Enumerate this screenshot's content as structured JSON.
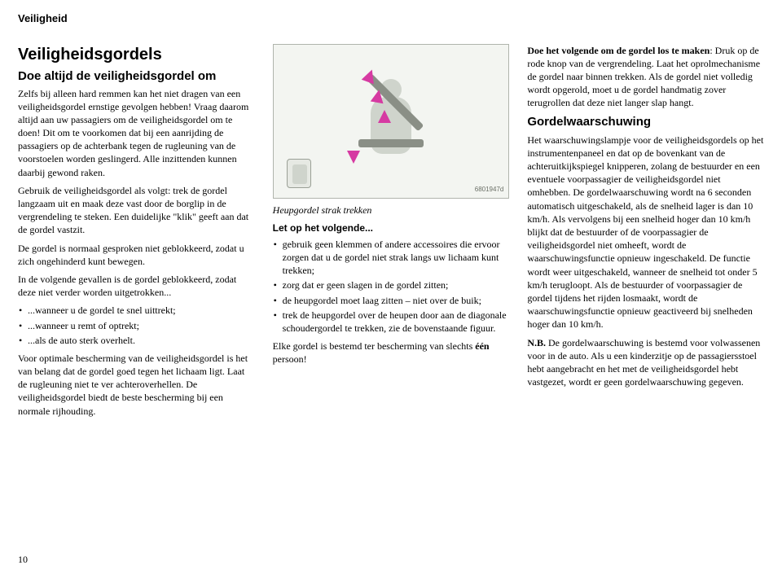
{
  "header": "Veiligheid",
  "page_number": "10",
  "col1": {
    "h1": "Veiligheidsgordels",
    "h2": "Doe altijd de veiligheidsgordel om",
    "p1": "Zelfs bij alleen hard remmen kan het niet dragen van een veiligheidsgordel ernstige gevolgen hebben! Vraag daarom altijd aan uw passagiers om de veiligheidsgordel om te doen! Dit om te voorkomen dat bij een aanrijding de passagiers op de achterbank tegen de rugleuning van de voorstoelen worden geslingerd. Alle inzittenden kunnen daarbij gewond raken.",
    "p2": "Gebruik de veiligheidsgordel als volgt: trek de gordel langzaam uit en maak deze vast door de borglip in de vergrendeling te steken. Een duidelijke \"klik\" geeft aan dat de gordel vastzit.",
    "p3": "De gordel is normaal gesproken niet geblokkeerd, zodat u zich ongehinderd kunt bewegen.",
    "p4": "In de volgende gevallen is de gordel geblokkeerd, zodat deze niet verder worden uitgetrokken...",
    "li1": "...wanneer u de gordel te snel uittrekt;",
    "li2": "...wanneer u remt of optrekt;",
    "li3": "...als de auto sterk overhelt.",
    "p5": "Voor optimale bescherming van de veiligheidsgordel is het van belang dat de gordel goed tegen het lichaam ligt. Laat de rugleuning niet te ver achteroverhellen. De veiligheidsgordel biedt de beste bescherming bij een normale rijhouding."
  },
  "col2": {
    "fig_label": "6801947d",
    "caption": "Heupgordel strak trekken",
    "lead": "Let op het volgende...",
    "li1": "gebruik geen klemmen of andere accessoires die ervoor zorgen dat u de gordel niet strak langs uw lichaam kunt trekken;",
    "li2": "zorg dat er geen slagen in de gordel zitten;",
    "li3": "de heupgordel moet laag zitten – niet over de buik;",
    "li4": "trek de heupgordel over de heupen door aan de diagonale schoudergordel te trekken, zie de bovenstaande figuur.",
    "p_end_a": "Elke gordel is bestemd ter bescherming van slechts ",
    "p_end_b": "één",
    "p_end_c": " persoon!"
  },
  "col3": {
    "p1_a": "Doe het volgende om de gordel los te maken",
    "p1_b": ": Druk op de rode knop van de vergrendeling. Laat het oprolmechanisme de gordel naar binnen trekken. Als de gordel niet volledig wordt opgerold, moet u de gordel handmatig zover terugrollen dat deze niet langer slap hangt.",
    "h3": "Gordelwaarschuwing",
    "p2": "Het waarschuwingslampje voor de veiligheidsgordels op het instrumentenpaneel en dat op de bovenkant van de achteruitkijkspiegel knipperen, zolang de bestuurder en een eventuele voorpassagier de veiligheidsgordel niet omhebben. De gordelwaarschuwing wordt na 6 seconden automatisch uitgeschakeld, als de snelheid lager is dan 10 km/h. Als vervolgens bij een snelheid hoger dan 10 km/h blijkt dat de bestuurder of de voorpassagier de veiligheidsgordel niet omheeft, wordt de waarschuwingsfunctie opnieuw ingeschakeld. De functie wordt weer uitgeschakeld, wanneer de snelheid tot onder 5 km/h terugloopt. Als de bestuurder of voorpassagier de gordel tijdens het rijden losmaakt, wordt de waarschuwingsfunctie opnieuw geactiveerd bij snelheden hoger dan 10 km/h.",
    "p3_a": "N.B.",
    "p3_b": " De gordelwaarschuwing is bestemd voor volwassenen voor in de auto. Als u een kinderzitje op de passagiersstoel hebt aangebracht en het met de veiligheidsgordel hebt vastgezet, wordt er geen gordelwaarschuwing gegeven."
  }
}
